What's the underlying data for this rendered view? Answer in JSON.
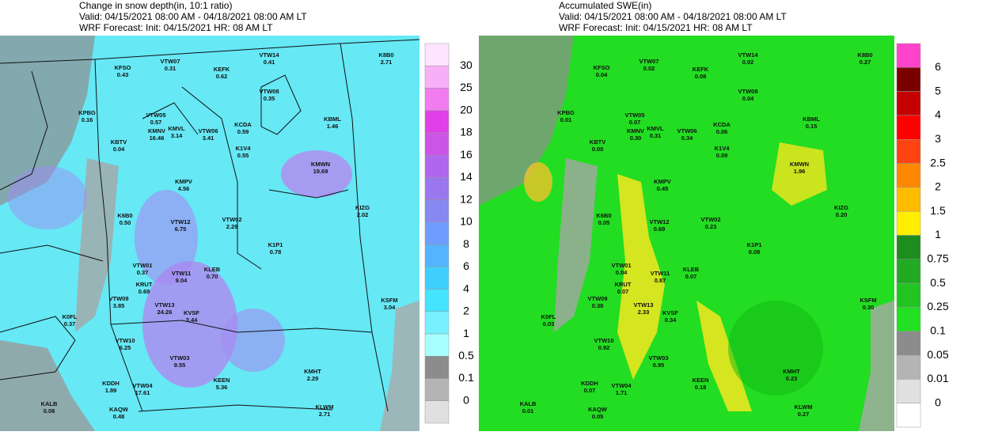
{
  "maps": [
    {
      "title": [
        "Change in snow depth(in, 10:1 ratio)",
        "Valid: 04/15/2021 08:00 AM - 04/18/2021 08:00 AM LT",
        "WRF Forecast: Init: 04/15/2021 HR: 08 AM LT"
      ],
      "colorbar": [
        30,
        25,
        20,
        18,
        16,
        14,
        12,
        10,
        8,
        6,
        4,
        2,
        1,
        0.5,
        0.1,
        0
      ],
      "stations": [
        {
          "id": "KFSO",
          "value": "0.43"
        },
        {
          "id": "VTW07",
          "value": "0.31"
        },
        {
          "id": "KEFK",
          "value": "0.62"
        },
        {
          "id": "VTW14",
          "value": "0.41"
        },
        {
          "id": "K8B0",
          "value": "2.71"
        },
        {
          "id": "KPBG",
          "value": "0.16"
        },
        {
          "id": "VTW05",
          "value": "0.57"
        },
        {
          "id": "KMNV",
          "value": "16.46"
        },
        {
          "id": "KMVL",
          "value": "3.14"
        },
        {
          "id": "VTW06",
          "value": "3.41"
        },
        {
          "id": "KCDA",
          "value": "0.59"
        },
        {
          "id": "VTW08",
          "value": "0.35"
        },
        {
          "id": "KBML",
          "value": "1.46"
        },
        {
          "id": "KBTV",
          "value": "0.04"
        },
        {
          "id": "K1V4",
          "value": "0.55"
        },
        {
          "id": "KMWN",
          "value": "19.69"
        },
        {
          "id": "KMPV",
          "value": "4.56"
        },
        {
          "id": "KIZG",
          "value": "2.02"
        },
        {
          "id": "K6B0",
          "value": "0.50"
        },
        {
          "id": "VTW12",
          "value": "6.75"
        },
        {
          "id": "VTW02",
          "value": "2.29"
        },
        {
          "id": "K1P1",
          "value": "0.78"
        },
        {
          "id": "VTW01",
          "value": "0.37"
        },
        {
          "id": "VTW11",
          "value": "9.04"
        },
        {
          "id": "KLEB",
          "value": "0.70"
        },
        {
          "id": "KRUT",
          "value": "0.69"
        },
        {
          "id": "VTW09",
          "value": "3.85"
        },
        {
          "id": "VTW13",
          "value": "24.26"
        },
        {
          "id": "KVSF",
          "value": "3.44"
        },
        {
          "id": "KSFM",
          "value": "3.04"
        },
        {
          "id": "K0FL",
          "value": "0.37"
        },
        {
          "id": "VTW10",
          "value": "6.25"
        },
        {
          "id": "VTW03",
          "value": "9.55"
        },
        {
          "id": "KEEN",
          "value": "5.36"
        },
        {
          "id": "KMHT",
          "value": "2.29"
        },
        {
          "id": "KDDH",
          "value": "1.89"
        },
        {
          "id": "VTW04",
          "value": "17.61"
        },
        {
          "id": "KALB",
          "value": "0.08"
        },
        {
          "id": "KAQW",
          "value": "0.48"
        },
        {
          "id": "KLWM",
          "value": "2.71"
        }
      ]
    },
    {
      "title": [
        "Accumulated SWE(in)",
        "Valid: 04/15/2021 08:00 AM - 04/18/2021 08:00 AM LT",
        "WRF Forecast: Init: 04/15/2021 HR: 08 AM LT"
      ],
      "colorbar": [
        6,
        5,
        4,
        3,
        2.5,
        2,
        1.5,
        1,
        0.75,
        0.5,
        0.25,
        0.1,
        0.05,
        0.01,
        0
      ],
      "stations": [
        {
          "id": "KFSO",
          "value": "0.04"
        },
        {
          "id": "VTW07",
          "value": "0.02"
        },
        {
          "id": "KEFK",
          "value": "0.08"
        },
        {
          "id": "VTW14",
          "value": "0.02"
        },
        {
          "id": "K8B0",
          "value": "0.27"
        },
        {
          "id": "KPBG",
          "value": "0.01"
        },
        {
          "id": "VTW05",
          "value": "0.07"
        },
        {
          "id": "KMNV",
          "value": "0.30"
        },
        {
          "id": "KMVL",
          "value": "0.31"
        },
        {
          "id": "VTW06",
          "value": "0.34"
        },
        {
          "id": "KCDA",
          "value": "0.06"
        },
        {
          "id": "VTW08",
          "value": "0.04"
        },
        {
          "id": "KBML",
          "value": "0.15"
        },
        {
          "id": "KBTV",
          "value": "0.00"
        },
        {
          "id": "K1V4",
          "value": "0.09"
        },
        {
          "id": "KMWN",
          "value": "1.96"
        },
        {
          "id": "KMPV",
          "value": "0.45"
        },
        {
          "id": "KIZG",
          "value": "0.20"
        },
        {
          "id": "K6B0",
          "value": "0.05"
        },
        {
          "id": "VTW12",
          "value": "0.69"
        },
        {
          "id": "VTW02",
          "value": "0.23"
        },
        {
          "id": "K1P1",
          "value": "0.08"
        },
        {
          "id": "VTW01",
          "value": "0.04"
        },
        {
          "id": "VTW11",
          "value": "0.87"
        },
        {
          "id": "KLEB",
          "value": "0.07"
        },
        {
          "id": "KRUT",
          "value": "0.07"
        },
        {
          "id": "VTW09",
          "value": "0.38"
        },
        {
          "id": "VTW13",
          "value": "2.33"
        },
        {
          "id": "KVSF",
          "value": "0.34"
        },
        {
          "id": "KSFM",
          "value": "0.30"
        },
        {
          "id": "K0FL",
          "value": "0.03"
        },
        {
          "id": "VTW10",
          "value": "0.92"
        },
        {
          "id": "VTW03",
          "value": "0.95"
        },
        {
          "id": "KEEN",
          "value": "0.18"
        },
        {
          "id": "KMHT",
          "value": "0.23"
        },
        {
          "id": "KDDH",
          "value": "0.07"
        },
        {
          "id": "VTW04",
          "value": "1.71"
        },
        {
          "id": "KALB",
          "value": "0.01"
        },
        {
          "id": "KAQW",
          "value": "0.05"
        },
        {
          "id": "KLWM",
          "value": "0.27"
        }
      ]
    }
  ]
}
